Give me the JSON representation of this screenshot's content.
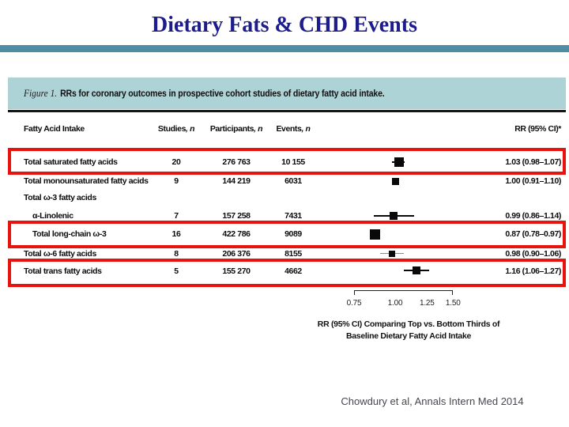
{
  "slide": {
    "title": "Dietary Fats & CHD Events",
    "citation": "Chowdury et al, Annals Intern Med 2014"
  },
  "figure": {
    "caption": {
      "label": "Figure 1.",
      "text": "RRs for coronary outcomes in prospective cohort studies of dietary fatty acid intake."
    },
    "headers": {
      "intake": "Fatty Acid Intake",
      "studies": "Studies",
      "participants": "Participants",
      "events": "Events",
      "n_italic": ", n",
      "rr": "RR (95% CI)*"
    },
    "rows": [
      {
        "label": "Total saturated fatty acids",
        "studies": "20",
        "participants": "276 763",
        "events": "10 155",
        "rr_text": "1.03 (0.98–1.07)"
      },
      {
        "label": "Total monounsaturated fatty acids",
        "studies": "9",
        "participants": "144 219",
        "events": "6031",
        "rr_text": "1.00 (0.91–1.10)"
      },
      {
        "label": "Total ω-3 fatty acids"
      },
      {
        "label": "α-Linolenic",
        "studies": "7",
        "participants": "157 258",
        "events": "7431",
        "rr_text": "0.99 (0.86–1.14)"
      },
      {
        "label": "Total long-chain ω-3",
        "studies": "16",
        "participants": "422 786",
        "events": "9089",
        "rr_text": "0.87 (0.78–0.97)"
      },
      {
        "label": "Total ω-6 fatty acids",
        "studies": "8",
        "participants": "206 376",
        "events": "8155",
        "rr_text": "0.98 (0.90–1.06)"
      },
      {
        "label": "Total trans fatty acids",
        "studies": "5",
        "participants": "155 270",
        "events": "4662",
        "rr_text": "1.16 (1.06–1.27)"
      }
    ],
    "axis": {
      "ticks": [
        "0.75",
        "1.00",
        "1.25",
        "1.50"
      ],
      "label_line1": "RR (95% CI) Comparing Top vs. Bottom Thirds of",
      "label_line2": "Baseline Dietary Fatty Acid Intake"
    }
  },
  "chart_data": {
    "type": "scatter",
    "subtype": "forest_plot",
    "title": "Figure 1. RRs for coronary outcomes in prospective cohort studies of dietary fatty acid intake.",
    "xlabel": "RR (95% CI) Comparing Top vs. Bottom Thirds of Baseline Dietary Fatty Acid Intake",
    "x_scale": "log",
    "x_ticks": [
      0.75,
      1.0,
      1.25,
      1.5
    ],
    "xlim": [
      0.75,
      1.5
    ],
    "categories": [
      "Total saturated fatty acids",
      "Total monounsaturated fatty acids",
      "α-Linolenic",
      "Total long-chain ω-3",
      "Total ω-6 fatty acids",
      "Total trans fatty acids"
    ],
    "rr": [
      1.03,
      1.0,
      0.99,
      0.87,
      0.98,
      1.16
    ],
    "ci_low": [
      0.98,
      0.91,
      0.86,
      0.78,
      0.9,
      1.06
    ],
    "ci_high": [
      1.07,
      1.1,
      1.14,
      0.97,
      1.06,
      1.27
    ],
    "studies_n": [
      20,
      9,
      7,
      16,
      8,
      5
    ],
    "participants_n": [
      276763,
      144219,
      157258,
      422786,
      206376,
      155270
    ],
    "events_n": [
      10155,
      6031,
      7431,
      9089,
      8155,
      4662
    ],
    "whisker_visible": [
      true,
      false,
      true,
      false,
      true,
      true
    ],
    "whisker_light": [
      false,
      false,
      false,
      false,
      true,
      false
    ],
    "marker_px": [
      12,
      9,
      10,
      13,
      8,
      10
    ],
    "highlighted_rows": [
      "Total saturated fatty acids",
      "Total long-chain ω-3",
      "Total trans fatty acids"
    ]
  },
  "colors": {
    "title_text": "#1c1c8c",
    "accent_bar": "#4f8da4",
    "caption_band": "#aed3d6",
    "highlight_box": "#e9130d",
    "marker": "#0a0a0a"
  }
}
